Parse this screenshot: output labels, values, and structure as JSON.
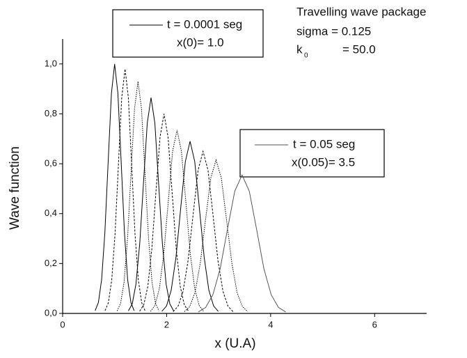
{
  "chart_data": {
    "type": "line",
    "xlabel": "x (U.A)",
    "ylabel": "Wave function",
    "xlim": [
      0,
      7
    ],
    "xticks": [
      0,
      2,
      4,
      6
    ],
    "ylim": [
      0,
      1.1
    ],
    "yticks": [
      {
        "value": 0,
        "label": "0,0"
      },
      {
        "value": 0.2,
        "label": "0,2"
      },
      {
        "value": 0.4,
        "label": "0,4"
      },
      {
        "value": 0.6,
        "label": "0,6"
      },
      {
        "value": 0.8,
        "label": "0,8"
      },
      {
        "value": 1.0,
        "label": "1,0"
      }
    ],
    "legend_start": {
      "sample_color": "#000000",
      "lines": [
        "t = 0.0001 seg",
        "x(0)= 1.0"
      ]
    },
    "legend_end": {
      "sample_color": "#555555",
      "lines": [
        "t  = 0.05 seg",
        "x(0.05)= 3.5"
      ]
    },
    "annotation": {
      "title": "Travelling wave package",
      "sigma": "sigma = 0.125",
      "k": "k",
      "k_sub": "0",
      "k_value": "= 50.0"
    },
    "series": [
      {
        "color": "#000000",
        "line_style": "solid",
        "x": [
          0.625,
          0.688,
          0.75,
          0.813,
          0.875,
          0.938,
          1.0,
          1.063,
          1.125,
          1.188,
          1.25,
          1.313,
          1.375
        ],
        "values": [
          0.011,
          0.044,
          0.135,
          0.325,
          0.607,
          0.882,
          1,
          0.882,
          0.607,
          0.325,
          0.135,
          0.044,
          0.011
        ]
      },
      {
        "color": "#000000",
        "line_style": "dashed",
        "x": [
          0.816,
          0.88,
          0.944,
          1.008,
          1.072,
          1.136,
          1.2,
          1.264,
          1.328,
          1.392,
          1.456,
          1.52,
          1.584
        ],
        "values": [
          0.011,
          0.043,
          0.133,
          0.318,
          0.594,
          0.865,
          0.98,
          0.865,
          0.594,
          0.318,
          0.133,
          0.043,
          0.011
        ]
      },
      {
        "color": "#000000",
        "line_style": "dotted",
        "x": [
          1.048,
          1.115,
          1.182,
          1.249,
          1.316,
          1.383,
          1.45,
          1.517,
          1.584,
          1.651,
          1.718,
          1.785,
          1.852
        ],
        "values": [
          0.01,
          0.041,
          0.126,
          0.302,
          0.564,
          0.821,
          0.93,
          0.821,
          0.564,
          0.302,
          0.126,
          0.041,
          0.01
        ]
      },
      {
        "color": "#000000",
        "line_style": "solid",
        "x": [
          1.265,
          1.338,
          1.41,
          1.483,
          1.555,
          1.628,
          1.7,
          1.773,
          1.845,
          1.918,
          1.99,
          2.063,
          2.135
        ],
        "values": [
          0.01,
          0.038,
          0.117,
          0.281,
          0.525,
          0.763,
          0.865,
          0.763,
          0.525,
          0.281,
          0.117,
          0.038,
          0.01
        ]
      },
      {
        "color": "#000000",
        "line_style": "dashed",
        "x": [
          1.482,
          1.56,
          1.638,
          1.716,
          1.794,
          1.872,
          1.95,
          2.028,
          2.106,
          2.184,
          2.262,
          2.34,
          2.418
        ],
        "values": [
          0.009,
          0.035,
          0.108,
          0.26,
          0.485,
          0.706,
          0.8,
          0.706,
          0.485,
          0.26,
          0.108,
          0.035,
          0.009
        ]
      },
      {
        "color": "#000000",
        "line_style": "dotted",
        "x": [
          1.69,
          1.775,
          1.86,
          1.945,
          2.03,
          2.115,
          2.2,
          2.285,
          2.37,
          2.455,
          2.54,
          2.625,
          2.71
        ],
        "values": [
          0.008,
          0.032,
          0.099,
          0.239,
          0.446,
          0.649,
          0.735,
          0.649,
          0.446,
          0.239,
          0.099,
          0.032,
          0.008
        ]
      },
      {
        "color": "#000000",
        "line_style": "solid",
        "x": [
          1.907,
          1.998,
          2.088,
          2.179,
          2.269,
          2.36,
          2.45,
          2.541,
          2.631,
          2.722,
          2.812,
          2.903,
          2.993
        ],
        "values": [
          0.008,
          0.03,
          0.093,
          0.224,
          0.418,
          0.609,
          0.69,
          0.609,
          0.418,
          0.224,
          0.093,
          0.03,
          0.008
        ]
      },
      {
        "color": "#000000",
        "line_style": "dashed",
        "x": [
          2.124,
          2.22,
          2.316,
          2.412,
          2.508,
          2.604,
          2.7,
          2.796,
          2.892,
          2.988,
          3.084,
          3.18,
          3.276
        ],
        "values": [
          0.007,
          0.029,
          0.088,
          0.211,
          0.394,
          0.574,
          0.65,
          0.574,
          0.394,
          0.211,
          0.088,
          0.029,
          0.007
        ]
      },
      {
        "color": "#000000",
        "line_style": "dotted",
        "x": [
          2.341,
          2.443,
          2.544,
          2.646,
          2.747,
          2.849,
          2.95,
          3.052,
          3.153,
          3.255,
          3.356,
          3.458,
          3.559
        ],
        "values": [
          0.007,
          0.027,
          0.083,
          0.2,
          0.373,
          0.543,
          0.615,
          0.543,
          0.373,
          0.2,
          0.083,
          0.027,
          0.007
        ]
      },
      {
        "color": "#555555",
        "line_style": "solid",
        "x": [
          2.61,
          2.75,
          2.89,
          3.03,
          3.17,
          3.31,
          3.45,
          3.59,
          3.73,
          3.87,
          4.01,
          4.15,
          4.29
        ],
        "values": [
          0.006,
          0.024,
          0.075,
          0.18,
          0.337,
          0.49,
          0.555,
          0.49,
          0.337,
          0.18,
          0.075,
          0.024,
          0.006
        ]
      }
    ]
  }
}
